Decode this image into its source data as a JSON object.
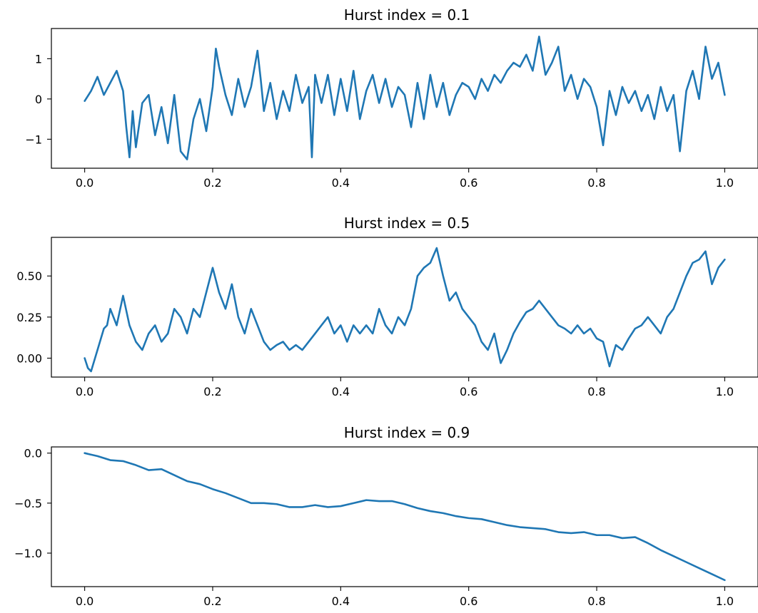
{
  "colors": {
    "series": "#1f77b4"
  },
  "chart_data": [
    {
      "type": "line",
      "title": "Hurst index = 0.1",
      "xlabel": "",
      "ylabel": "",
      "xlim": [
        -0.052,
        1.052
      ],
      "ylim": [
        -1.72,
        1.75
      ],
      "xticks": [
        0.0,
        0.2,
        0.4,
        0.6,
        0.8,
        1.0
      ],
      "xtick_labels": [
        "0.0",
        "0.2",
        "0.4",
        "0.6",
        "0.8",
        "1.0"
      ],
      "yticks": [
        1,
        0,
        -1
      ],
      "ytick_labels": [
        "1",
        "0",
        "−1"
      ],
      "grid": false,
      "series": [
        {
          "x": [
            0.0,
            0.01,
            0.02,
            0.03,
            0.04,
            0.05,
            0.06,
            0.065,
            0.07,
            0.075,
            0.08,
            0.09,
            0.1,
            0.11,
            0.12,
            0.13,
            0.14,
            0.15,
            0.16,
            0.17,
            0.18,
            0.19,
            0.2,
            0.205,
            0.21,
            0.22,
            0.23,
            0.24,
            0.25,
            0.26,
            0.27,
            0.275,
            0.28,
            0.29,
            0.3,
            0.31,
            0.32,
            0.33,
            0.34,
            0.35,
            0.355,
            0.36,
            0.37,
            0.38,
            0.39,
            0.4,
            0.41,
            0.42,
            0.43,
            0.44,
            0.45,
            0.46,
            0.47,
            0.48,
            0.49,
            0.5,
            0.51,
            0.52,
            0.53,
            0.54,
            0.55,
            0.56,
            0.57,
            0.58,
            0.59,
            0.6,
            0.61,
            0.62,
            0.63,
            0.64,
            0.65,
            0.66,
            0.67,
            0.68,
            0.69,
            0.7,
            0.71,
            0.72,
            0.73,
            0.74,
            0.75,
            0.76,
            0.77,
            0.78,
            0.79,
            0.8,
            0.81,
            0.82,
            0.83,
            0.84,
            0.85,
            0.86,
            0.87,
            0.88,
            0.89,
            0.9,
            0.91,
            0.92,
            0.93,
            0.94,
            0.95,
            0.96,
            0.97,
            0.98,
            0.99,
            1.0
          ],
          "y": [
            -0.05,
            0.2,
            0.55,
            0.1,
            0.4,
            0.7,
            0.2,
            -0.7,
            -1.45,
            -0.3,
            -1.2,
            -0.1,
            0.1,
            -0.9,
            -0.2,
            -1.1,
            0.1,
            -1.3,
            -1.5,
            -0.5,
            0.0,
            -0.8,
            0.3,
            1.25,
            0.8,
            0.1,
            -0.4,
            0.5,
            -0.2,
            0.3,
            1.2,
            0.5,
            -0.3,
            0.4,
            -0.5,
            0.2,
            -0.3,
            0.6,
            -0.1,
            0.3,
            -1.45,
            0.6,
            -0.1,
            0.6,
            -0.4,
            0.5,
            -0.3,
            0.7,
            -0.5,
            0.2,
            0.6,
            -0.1,
            0.5,
            -0.2,
            0.3,
            0.1,
            -0.7,
            0.4,
            -0.5,
            0.6,
            -0.2,
            0.4,
            -0.4,
            0.1,
            0.4,
            0.3,
            0.0,
            0.5,
            0.2,
            0.6,
            0.4,
            0.7,
            0.9,
            0.8,
            1.1,
            0.7,
            1.55,
            0.6,
            0.9,
            1.3,
            0.2,
            0.6,
            0.0,
            0.5,
            0.3,
            -0.2,
            -1.15,
            0.2,
            -0.4,
            0.3,
            -0.1,
            0.2,
            -0.3,
            0.1,
            -0.5,
            0.3,
            -0.3,
            0.1,
            -1.3,
            0.2,
            0.7,
            0.0,
            1.3,
            0.5,
            0.9,
            0.1
          ]
        }
      ]
    },
    {
      "type": "line",
      "title": "Hurst index = 0.5",
      "xlabel": "",
      "ylabel": "",
      "xlim": [
        -0.052,
        1.052
      ],
      "ylim": [
        -0.115,
        0.735
      ],
      "xticks": [
        0.0,
        0.2,
        0.4,
        0.6,
        0.8,
        1.0
      ],
      "xtick_labels": [
        "0.0",
        "0.2",
        "0.4",
        "0.6",
        "0.8",
        "1.0"
      ],
      "yticks": [
        0.5,
        0.25,
        0.0
      ],
      "ytick_labels": [
        "0.50",
        "0.25",
        "0.00"
      ],
      "grid": false,
      "series": [
        {
          "x": [
            0.0,
            0.005,
            0.01,
            0.02,
            0.03,
            0.035,
            0.04,
            0.05,
            0.06,
            0.07,
            0.08,
            0.09,
            0.1,
            0.11,
            0.12,
            0.13,
            0.14,
            0.15,
            0.16,
            0.17,
            0.18,
            0.19,
            0.2,
            0.21,
            0.22,
            0.23,
            0.24,
            0.25,
            0.26,
            0.27,
            0.28,
            0.29,
            0.3,
            0.31,
            0.32,
            0.33,
            0.34,
            0.35,
            0.36,
            0.37,
            0.38,
            0.39,
            0.4,
            0.41,
            0.42,
            0.43,
            0.44,
            0.45,
            0.46,
            0.47,
            0.48,
            0.49,
            0.5,
            0.51,
            0.52,
            0.53,
            0.54,
            0.55,
            0.56,
            0.57,
            0.58,
            0.59,
            0.6,
            0.61,
            0.62,
            0.63,
            0.64,
            0.65,
            0.66,
            0.67,
            0.68,
            0.69,
            0.7,
            0.71,
            0.72,
            0.73,
            0.74,
            0.75,
            0.76,
            0.77,
            0.78,
            0.79,
            0.8,
            0.81,
            0.82,
            0.83,
            0.84,
            0.85,
            0.86,
            0.87,
            0.88,
            0.89,
            0.9,
            0.91,
            0.92,
            0.93,
            0.94,
            0.95,
            0.96,
            0.97,
            0.98,
            0.99,
            1.0
          ],
          "y": [
            0.0,
            -0.06,
            -0.08,
            0.05,
            0.18,
            0.2,
            0.3,
            0.2,
            0.38,
            0.2,
            0.1,
            0.05,
            0.15,
            0.2,
            0.1,
            0.15,
            0.3,
            0.25,
            0.15,
            0.3,
            0.25,
            0.4,
            0.55,
            0.4,
            0.3,
            0.45,
            0.25,
            0.15,
            0.3,
            0.2,
            0.1,
            0.05,
            0.08,
            0.1,
            0.05,
            0.08,
            0.05,
            0.1,
            0.15,
            0.2,
            0.25,
            0.15,
            0.2,
            0.1,
            0.2,
            0.15,
            0.2,
            0.15,
            0.3,
            0.2,
            0.15,
            0.25,
            0.2,
            0.3,
            0.5,
            0.55,
            0.58,
            0.67,
            0.5,
            0.35,
            0.4,
            0.3,
            0.25,
            0.2,
            0.1,
            0.05,
            0.15,
            -0.03,
            0.05,
            0.15,
            0.22,
            0.28,
            0.3,
            0.35,
            0.3,
            0.25,
            0.2,
            0.18,
            0.15,
            0.2,
            0.15,
            0.18,
            0.12,
            0.1,
            -0.05,
            0.08,
            0.05,
            0.12,
            0.18,
            0.2,
            0.25,
            0.2,
            0.15,
            0.25,
            0.3,
            0.4,
            0.5,
            0.58,
            0.6,
            0.65,
            0.45,
            0.55,
            0.6
          ]
        }
      ]
    },
    {
      "type": "line",
      "title": "Hurst index = 0.9",
      "xlabel": "",
      "ylabel": "",
      "xlim": [
        -0.052,
        1.052
      ],
      "ylim": [
        -1.335,
        0.062
      ],
      "xticks": [
        0.0,
        0.2,
        0.4,
        0.6,
        0.8,
        1.0
      ],
      "xtick_labels": [
        "0.0",
        "0.2",
        "0.4",
        "0.6",
        "0.8",
        "1.0"
      ],
      "yticks": [
        0.0,
        -0.5,
        -1.0
      ],
      "ytick_labels": [
        "0.0",
        "−0.5",
        "−1.0"
      ],
      "grid": false,
      "series": [
        {
          "x": [
            0.0,
            0.02,
            0.04,
            0.06,
            0.08,
            0.1,
            0.12,
            0.14,
            0.16,
            0.18,
            0.2,
            0.22,
            0.24,
            0.26,
            0.28,
            0.3,
            0.32,
            0.34,
            0.36,
            0.38,
            0.4,
            0.42,
            0.44,
            0.46,
            0.48,
            0.5,
            0.52,
            0.54,
            0.56,
            0.58,
            0.6,
            0.62,
            0.64,
            0.66,
            0.68,
            0.7,
            0.72,
            0.74,
            0.76,
            0.78,
            0.8,
            0.82,
            0.84,
            0.86,
            0.88,
            0.9,
            0.92,
            0.94,
            0.96,
            0.98,
            1.0
          ],
          "y": [
            0.0,
            -0.03,
            -0.07,
            -0.08,
            -0.12,
            -0.17,
            -0.16,
            -0.22,
            -0.28,
            -0.31,
            -0.36,
            -0.4,
            -0.45,
            -0.5,
            -0.5,
            -0.51,
            -0.54,
            -0.54,
            -0.52,
            -0.54,
            -0.53,
            -0.5,
            -0.47,
            -0.48,
            -0.48,
            -0.51,
            -0.55,
            -0.58,
            -0.6,
            -0.63,
            -0.65,
            -0.66,
            -0.69,
            -0.72,
            -0.74,
            -0.75,
            -0.76,
            -0.79,
            -0.8,
            -0.79,
            -0.82,
            -0.82,
            -0.85,
            -0.84,
            -0.9,
            -0.97,
            -1.03,
            -1.09,
            -1.15,
            -1.21,
            -1.27
          ]
        }
      ]
    }
  ]
}
